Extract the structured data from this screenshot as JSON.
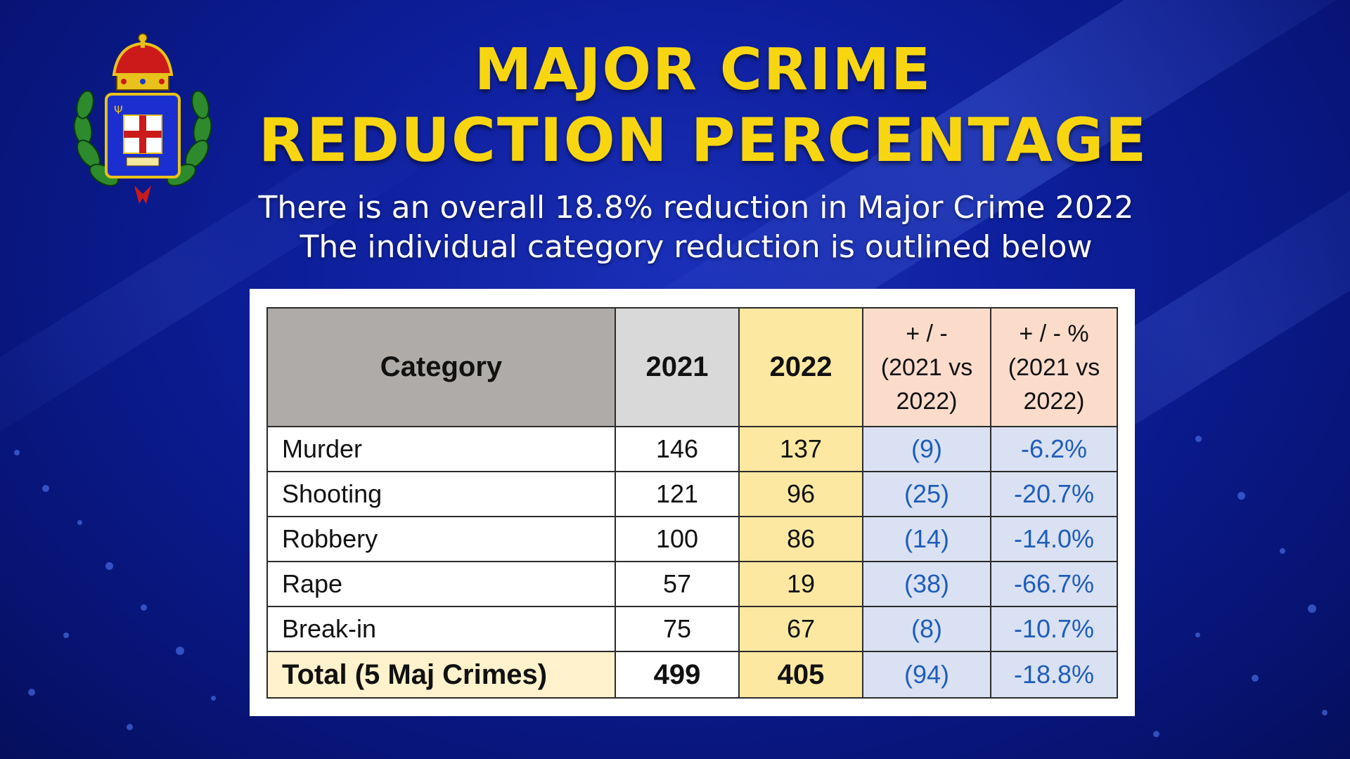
{
  "header": {
    "title_line1": "MAJOR CRIME",
    "title_line2": "REDUCTION PERCENTAGE",
    "subtitle_line1": "There is an overall 18.8% reduction in Major Crime 2022",
    "subtitle_line2": "The individual category reduction is outlined below"
  },
  "table": {
    "headers": {
      "category": "Category",
      "y2021": "2021",
      "y2022": "2022",
      "change_line1": "+ / -",
      "change_line2": "(2021 vs",
      "change_line3": "2022)",
      "pct_line1": "+ / - %",
      "pct_line2": "(2021 vs",
      "pct_line3": "2022)"
    },
    "rows": [
      {
        "category": "Murder",
        "y2021": "146",
        "y2022": "137",
        "change": "(9)",
        "pct": "-6.2%"
      },
      {
        "category": "Shooting",
        "y2021": "121",
        "y2022": "96",
        "change": "(25)",
        "pct": "-20.7%"
      },
      {
        "category": "Robbery",
        "y2021": "100",
        "y2022": "86",
        "change": "(14)",
        "pct": "-14.0%"
      },
      {
        "category": "Rape",
        "y2021": "57",
        "y2022": "19",
        "change": "(38)",
        "pct": "-66.7%"
      },
      {
        "category": "Break-in",
        "y2021": "75",
        "y2022": "67",
        "change": "(8)",
        "pct": "-10.7%"
      }
    ],
    "total": {
      "category": "Total (5 Maj Crimes)",
      "y2021": "499",
      "y2022": "405",
      "change": "(94)",
      "pct": "-18.8%"
    }
  },
  "colors": {
    "title": "#f7d611",
    "background": "#0d1e9a",
    "header_category": "#aeaba8",
    "header_2021": "#d9d9d9",
    "col_2022": "#fde8a2",
    "header_change": "#fbdccb",
    "change_cells": "#d9e1f2",
    "change_text": "#1f5db8"
  },
  "icons": {
    "logo": "police-crest-icon"
  }
}
